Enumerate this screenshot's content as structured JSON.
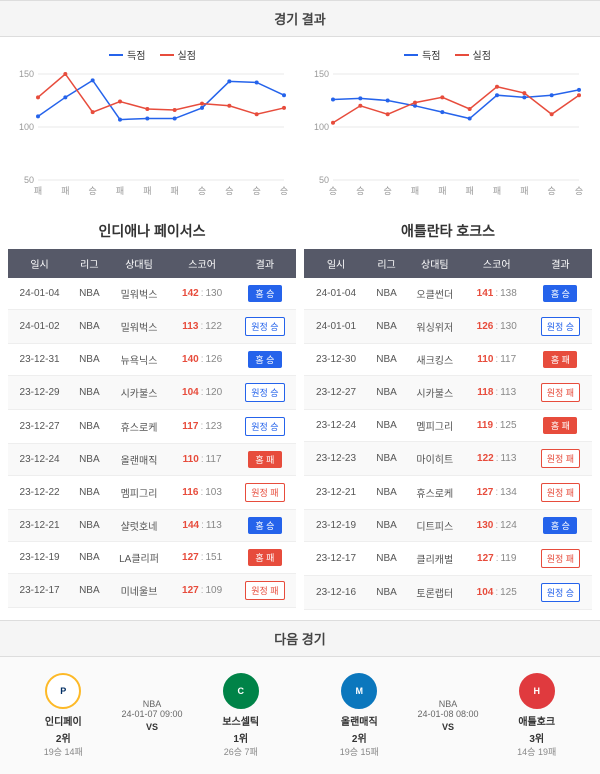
{
  "sections": {
    "results": "경기 결과",
    "next": "다음 경기"
  },
  "legend": {
    "scored": "득점",
    "conceded": "실점",
    "scored_color": "#2563eb",
    "conceded_color": "#e74c3c"
  },
  "charts": {
    "left": {
      "ylim": [
        50,
        150
      ],
      "yticks": [
        50,
        100,
        150
      ],
      "xlabels": [
        "패",
        "패",
        "승",
        "패",
        "패",
        "패",
        "승",
        "승",
        "승",
        "승"
      ],
      "scored": [
        110,
        128,
        144,
        107,
        108,
        108,
        118,
        143,
        142,
        130
      ],
      "conceded": [
        128,
        150,
        114,
        124,
        117,
        116,
        122,
        120,
        112,
        118
      ],
      "grid_color": "#e8e8e8",
      "bg": "#ffffff",
      "line_scored": "#2563eb",
      "line_conceded": "#e74c3c"
    },
    "right": {
      "ylim": [
        50,
        150
      ],
      "yticks": [
        50,
        100,
        150
      ],
      "xlabels": [
        "승",
        "승",
        "승",
        "패",
        "패",
        "패",
        "패",
        "패",
        "승",
        "승"
      ],
      "scored": [
        126,
        127,
        125,
        120,
        114,
        108,
        130,
        128,
        130,
        135
      ],
      "conceded": [
        104,
        120,
        112,
        123,
        128,
        117,
        138,
        132,
        112,
        130
      ],
      "grid_color": "#e8e8e8",
      "bg": "#ffffff",
      "line_scored": "#2563eb",
      "line_conceded": "#e74c3c"
    }
  },
  "tables": {
    "headers": {
      "date": "일시",
      "league": "리그",
      "opp": "상대팀",
      "score": "스코어",
      "result": "결과"
    },
    "left": {
      "team": "인디애나 페이서스",
      "rows": [
        {
          "date": "24-01-04",
          "lg": "NBA",
          "opp": "밀워벅스",
          "sf": 142,
          "sa": 130,
          "res": "홈 승",
          "cls": "home-win"
        },
        {
          "date": "24-01-02",
          "lg": "NBA",
          "opp": "밀워벅스",
          "sf": 113,
          "sa": 122,
          "res": "원정 승",
          "cls": "away-win"
        },
        {
          "date": "23-12-31",
          "lg": "NBA",
          "opp": "뉴욕닉스",
          "sf": 140,
          "sa": 126,
          "res": "홈 승",
          "cls": "home-win"
        },
        {
          "date": "23-12-29",
          "lg": "NBA",
          "opp": "시카불스",
          "sf": 104,
          "sa": 120,
          "res": "원정 승",
          "cls": "away-win"
        },
        {
          "date": "23-12-27",
          "lg": "NBA",
          "opp": "휴스로케",
          "sf": 117,
          "sa": 123,
          "res": "원정 승",
          "cls": "away-win"
        },
        {
          "date": "23-12-24",
          "lg": "NBA",
          "opp": "올랜매직",
          "sf": 110,
          "sa": 117,
          "res": "홈 패",
          "cls": "home-loss"
        },
        {
          "date": "23-12-22",
          "lg": "NBA",
          "opp": "멤피그리",
          "sf": 116,
          "sa": 103,
          "res": "원정 패",
          "cls": "away-loss"
        },
        {
          "date": "23-12-21",
          "lg": "NBA",
          "opp": "샬럿호네",
          "sf": 144,
          "sa": 113,
          "res": "홈 승",
          "cls": "home-win"
        },
        {
          "date": "23-12-19",
          "lg": "NBA",
          "opp": "LA클리퍼",
          "sf": 127,
          "sa": 151,
          "res": "홈 패",
          "cls": "home-loss"
        },
        {
          "date": "23-12-17",
          "lg": "NBA",
          "opp": "미네울브",
          "sf": 127,
          "sa": 109,
          "res": "원정 패",
          "cls": "away-loss"
        }
      ]
    },
    "right": {
      "team": "애틀란타 호크스",
      "rows": [
        {
          "date": "24-01-04",
          "lg": "NBA",
          "opp": "오클썬더",
          "sf": 141,
          "sa": 138,
          "res": "홈 승",
          "cls": "home-win"
        },
        {
          "date": "24-01-01",
          "lg": "NBA",
          "opp": "워싱위저",
          "sf": 126,
          "sa": 130,
          "res": "원정 승",
          "cls": "away-win"
        },
        {
          "date": "23-12-30",
          "lg": "NBA",
          "opp": "새크킹스",
          "sf": 110,
          "sa": 117,
          "res": "홈 패",
          "cls": "home-loss"
        },
        {
          "date": "23-12-27",
          "lg": "NBA",
          "opp": "시카불스",
          "sf": 118,
          "sa": 113,
          "res": "원정 패",
          "cls": "away-loss"
        },
        {
          "date": "23-12-24",
          "lg": "NBA",
          "opp": "멤피그리",
          "sf": 119,
          "sa": 125,
          "res": "홈 패",
          "cls": "home-loss"
        },
        {
          "date": "23-12-23",
          "lg": "NBA",
          "opp": "마이히트",
          "sf": 122,
          "sa": 113,
          "res": "원정 패",
          "cls": "away-loss"
        },
        {
          "date": "23-12-21",
          "lg": "NBA",
          "opp": "휴스로케",
          "sf": 127,
          "sa": 134,
          "res": "원정 패",
          "cls": "away-loss"
        },
        {
          "date": "23-12-19",
          "lg": "NBA",
          "opp": "디트피스",
          "sf": 130,
          "sa": 124,
          "res": "홈 승",
          "cls": "home-win"
        },
        {
          "date": "23-12-17",
          "lg": "NBA",
          "opp": "클리캐벌",
          "sf": 127,
          "sa": 119,
          "res": "원정 패",
          "cls": "away-loss"
        },
        {
          "date": "23-12-16",
          "lg": "NBA",
          "opp": "토론랩터",
          "sf": 104,
          "sa": 125,
          "res": "원정 승",
          "cls": "away-win"
        }
      ]
    }
  },
  "next_games": [
    {
      "home": {
        "name": "인디페이",
        "rank": "2위",
        "rec": "19승 14패",
        "logo_bg": "#fff",
        "logo_border": "#fdb927",
        "logo_text": "P",
        "logo_color": "#002d62"
      },
      "info": {
        "lg": "NBA",
        "dt": "24-01-07 09:00"
      },
      "away": {
        "name": "보스셀틱",
        "rank": "1위",
        "rec": "26승 7패",
        "logo_bg": "#008348",
        "logo_border": "#008348",
        "logo_text": "C",
        "logo_color": "#fff"
      }
    },
    {
      "home": {
        "name": "올랜매직",
        "rank": "2위",
        "rec": "19승 15패",
        "logo_bg": "#0b77bd",
        "logo_border": "#0b77bd",
        "logo_text": "M",
        "logo_color": "#fff"
      },
      "info": {
        "lg": "NBA",
        "dt": "24-01-08 08:00"
      },
      "away": {
        "name": "애틀호크",
        "rank": "3위",
        "rec": "14승 19패",
        "logo_bg": "#e03a3e",
        "logo_border": "#e03a3e",
        "logo_text": "H",
        "logo_color": "#fff"
      }
    }
  ]
}
